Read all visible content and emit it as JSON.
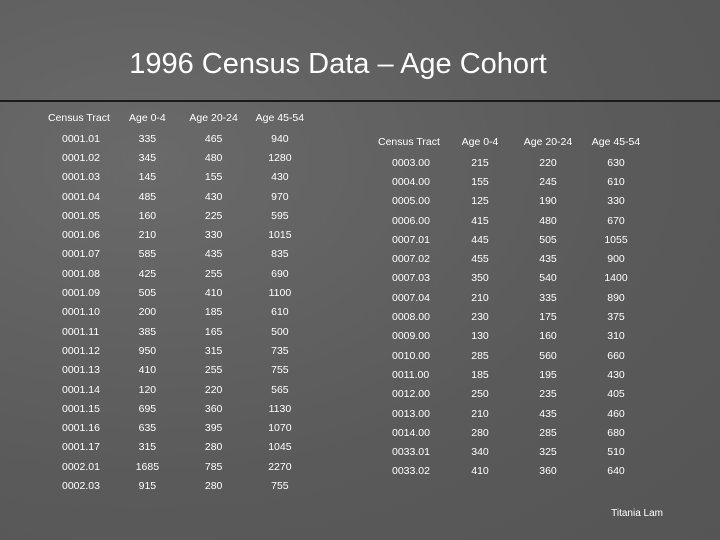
{
  "title": "1996 Census Data – Age Cohort",
  "headers": [
    "Census Tract",
    "Age 0-4",
    "Age 20-24",
    "Age 45-54"
  ],
  "left_rows": [
    [
      "0001.01",
      "335",
      "465",
      "940"
    ],
    [
      "0001.02",
      "345",
      "480",
      "1280"
    ],
    [
      "0001.03",
      "145",
      "155",
      "430"
    ],
    [
      "0001.04",
      "485",
      "430",
      "970"
    ],
    [
      "0001.05",
      "160",
      "225",
      "595"
    ],
    [
      "0001.06",
      "210",
      "330",
      "1015"
    ],
    [
      "0001.07",
      "585",
      "435",
      "835"
    ],
    [
      "0001.08",
      "425",
      "255",
      "690"
    ],
    [
      "0001.09",
      "505",
      "410",
      "1100"
    ],
    [
      "0001.10",
      "200",
      "185",
      "610"
    ],
    [
      "0001.11",
      "385",
      "165",
      "500"
    ],
    [
      "0001.12",
      "950",
      "315",
      "735"
    ],
    [
      "0001.13",
      "410",
      "255",
      "755"
    ],
    [
      "0001.14",
      "120",
      "220",
      "565"
    ],
    [
      "0001.15",
      "695",
      "360",
      "1130"
    ],
    [
      "0001.16",
      "635",
      "395",
      "1070"
    ],
    [
      "0001.17",
      "315",
      "280",
      "1045"
    ],
    [
      "0002.01",
      "1685",
      "785",
      "2270"
    ],
    [
      "0002.03",
      "915",
      "280",
      "755"
    ]
  ],
  "right_rows": [
    [
      "0003.00",
      "215",
      "220",
      "630"
    ],
    [
      "0004.00",
      "155",
      "245",
      "610"
    ],
    [
      "0005.00",
      "125",
      "190",
      "330"
    ],
    [
      "0006.00",
      "415",
      "480",
      "670"
    ],
    [
      "0007.01",
      "445",
      "505",
      "1055"
    ],
    [
      "0007.02",
      "455",
      "435",
      "900"
    ],
    [
      "0007.03",
      "350",
      "540",
      "1400"
    ],
    [
      "0007.04",
      "210",
      "335",
      "890"
    ],
    [
      "0008.00",
      "230",
      "175",
      "375"
    ],
    [
      "0009.00",
      "130",
      "160",
      "310"
    ],
    [
      "0010.00",
      "285",
      "560",
      "660"
    ],
    [
      "0011.00",
      "185",
      "195",
      "430"
    ],
    [
      "0012.00",
      "250",
      "235",
      "405"
    ],
    [
      "0013.00",
      "210",
      "435",
      "460"
    ],
    [
      "0014.00",
      "280",
      "285",
      "680"
    ],
    [
      "0033.01",
      "340",
      "325",
      "510"
    ],
    [
      "0033.02",
      "410",
      "360",
      "640"
    ]
  ],
  "author": "Titania Lam",
  "colors": {
    "background": "#5d5d5d",
    "text": "#ffffff",
    "rule": "#1a1a1a"
  }
}
